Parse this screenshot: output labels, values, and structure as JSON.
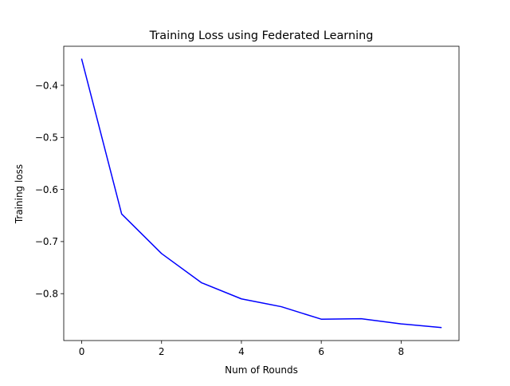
{
  "chart_data": {
    "type": "line",
    "title": "Training Loss using Federated Learning",
    "xlabel": "Num of Rounds",
    "ylabel": "Training loss",
    "xlim": [
      -0.45,
      9.45
    ],
    "ylim": [
      -0.89,
      -0.325
    ],
    "xticks": [
      0,
      2,
      4,
      6,
      8
    ],
    "yticks": [
      -0.4,
      -0.5,
      -0.6,
      -0.7,
      -0.8
    ],
    "grid": false,
    "legend": "none",
    "series": [
      {
        "color": "#0000ff",
        "x": [
          0,
          1,
          2,
          3,
          4,
          5,
          6,
          7,
          8,
          9
        ],
        "y": [
          -0.35,
          -0.647,
          -0.723,
          -0.779,
          -0.81,
          -0.825,
          -0.849,
          -0.848,
          -0.858,
          -0.865
        ]
      }
    ]
  }
}
